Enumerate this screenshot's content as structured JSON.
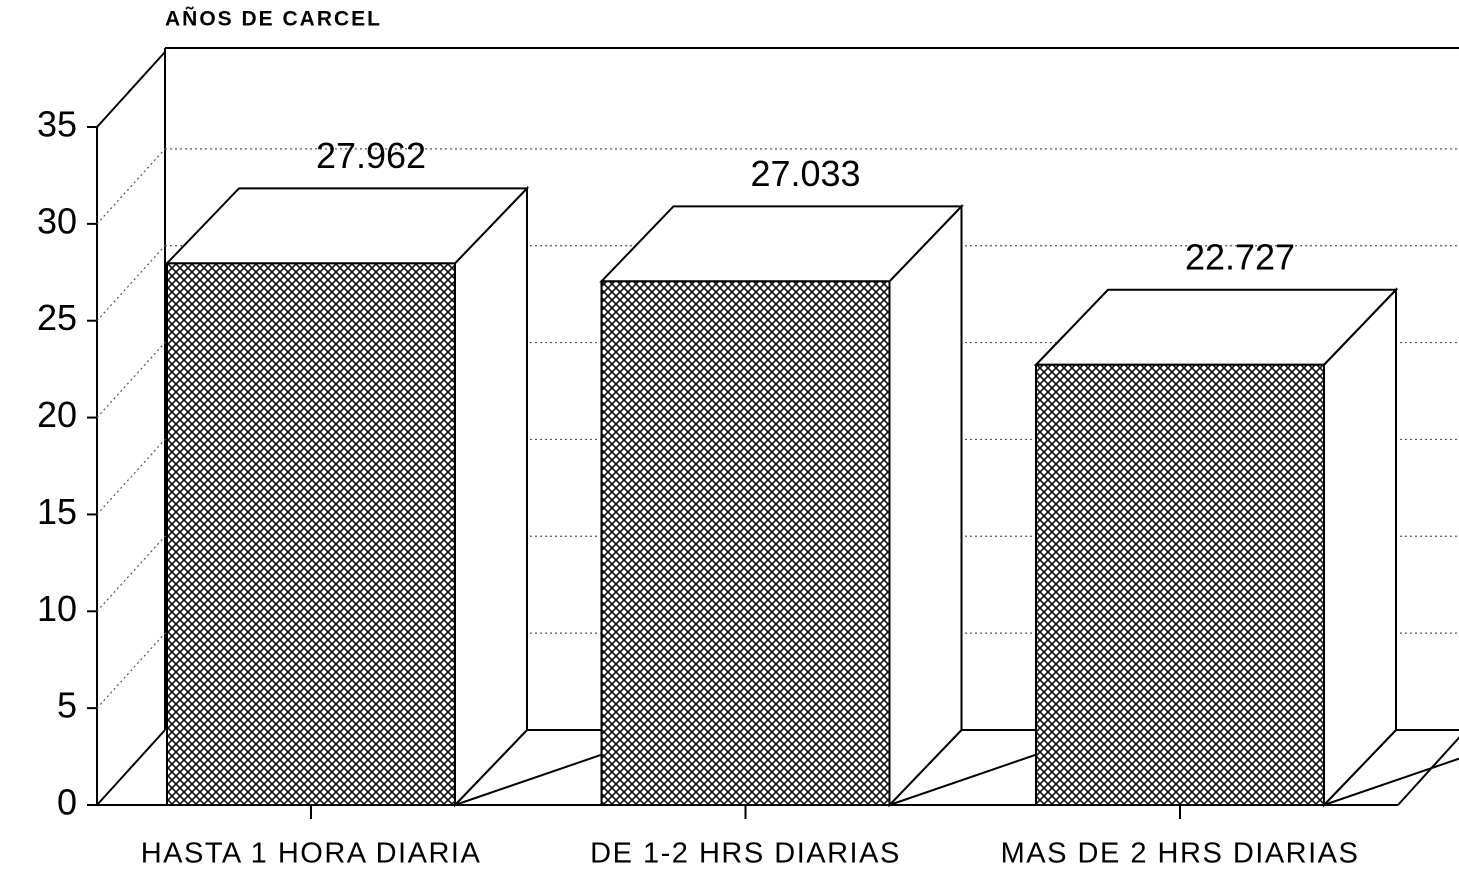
{
  "chart_data": {
    "type": "bar3d",
    "y_axis_label": "AÑOS DE CARCEL",
    "categories": [
      "HASTA 1 HORA DIARIA",
      "DE 1-2 HRS DIARIAS",
      "MAS DE 2 HRS DIARIAS"
    ],
    "values": [
      27.962,
      27.033,
      22.727
    ],
    "ylim": [
      0,
      35
    ],
    "yticks": [
      0,
      5,
      10,
      15,
      20,
      25,
      30,
      35
    ],
    "grid": true,
    "color": "#222222"
  }
}
